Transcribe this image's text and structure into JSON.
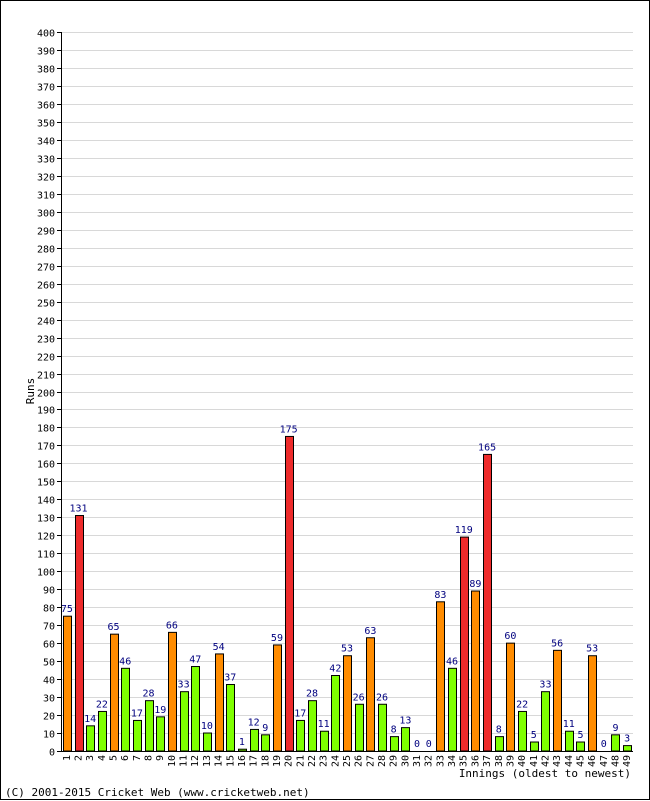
{
  "footer": {
    "copyright": "(C) 2001-2015 Cricket Web (www.cricketweb.net)"
  },
  "colors": {
    "grid": "#d8d8d8",
    "axis": "#000000",
    "label": "#00007f",
    "bar_outline": "#000000",
    "band_low": "#7fff00",
    "band_mid": "#ff8c00",
    "band_high": "#ee2b2b"
  },
  "chart_data": {
    "type": "bar",
    "title": "",
    "xlabel": "Innings (oldest to newest)",
    "ylabel": "Runs",
    "ylim": [
      0,
      400
    ],
    "ytick_step": 10,
    "grid": true,
    "legend": "none",
    "categories": [
      "1",
      "2",
      "3",
      "4",
      "5",
      "6",
      "7",
      "8",
      "9",
      "10",
      "11",
      "12",
      "13",
      "14",
      "15",
      "16",
      "17",
      "18",
      "19",
      "20",
      "21",
      "22",
      "23",
      "24",
      "25",
      "26",
      "27",
      "28",
      "29",
      "30",
      "31",
      "32",
      "33",
      "34",
      "35",
      "36",
      "37",
      "38",
      "39",
      "40",
      "41",
      "42",
      "43",
      "44",
      "45",
      "46",
      "47",
      "48",
      "49"
    ],
    "values": [
      75,
      131,
      14,
      22,
      65,
      46,
      17,
      28,
      19,
      66,
      33,
      47,
      10,
      54,
      37,
      1,
      12,
      9,
      59,
      175,
      17,
      28,
      11,
      42,
      53,
      26,
      63,
      26,
      8,
      13,
      0,
      0,
      83,
      46,
      119,
      89,
      165,
      8,
      60,
      22,
      5,
      33,
      56,
      11,
      5,
      53,
      0,
      9,
      3
    ],
    "bar_color_bands": [
      {
        "range": "0-49",
        "color": "#7fff00"
      },
      {
        "range": "50-99",
        "color": "#ff8c00"
      },
      {
        "range": "100+",
        "color": "#ee2b2b"
      }
    ]
  }
}
